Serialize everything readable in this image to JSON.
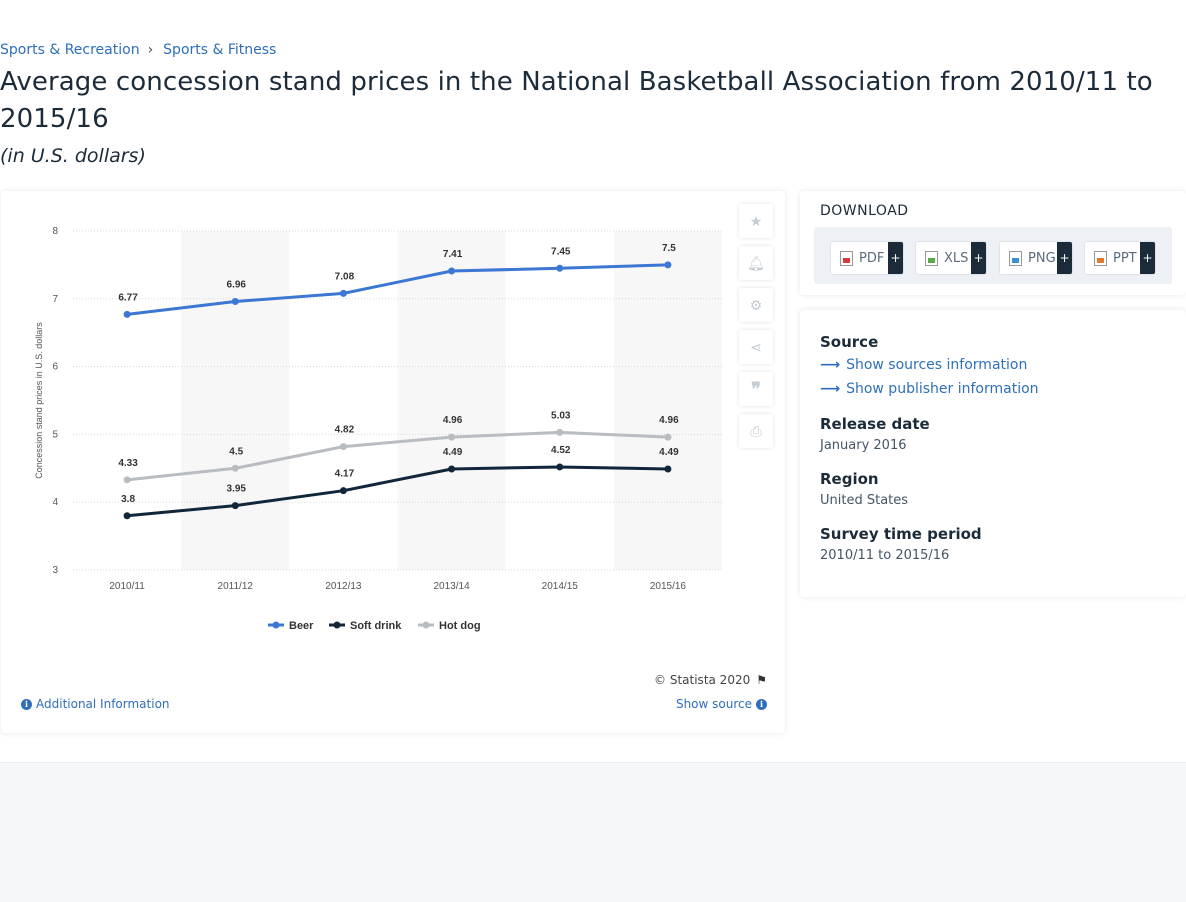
{
  "breadcrumb": {
    "items": [
      "Sports & Recreation",
      "Sports & Fitness"
    ],
    "separator": "›"
  },
  "page": {
    "title": "Average concession stand prices in the National Basketball Association from 2010/11 to 2015/16",
    "subtitle": "(in U.S. dollars)"
  },
  "chart_data": {
    "type": "line",
    "title": "",
    "xlabel": "",
    "ylabel": "Concession stand prices in U.S. dollars",
    "x": [
      "2010/11",
      "2011/12",
      "2012/13",
      "2013/14",
      "2014/15",
      "2015/16"
    ],
    "yticks": [
      3,
      4,
      5,
      6,
      7,
      8
    ],
    "ylim": [
      3,
      8
    ],
    "grid": true,
    "legend_position": "bottom",
    "series": [
      {
        "name": "Beer",
        "values": [
          6.77,
          6.96,
          7.08,
          7.41,
          7.45,
          7.5
        ],
        "labels": [
          "6.77",
          "6.96",
          "7.08",
          "7.41",
          "7.45",
          "7.5"
        ],
        "color": "#3b77d3"
      },
      {
        "name": "Soft drink",
        "values": [
          3.8,
          3.95,
          4.17,
          4.49,
          4.52,
          4.49
        ],
        "labels": [
          "3.8",
          "3.95",
          "4.17",
          "4.49",
          "4.52",
          "4.49"
        ],
        "color": "#12263a"
      },
      {
        "name": "Hot dog",
        "values": [
          4.33,
          4.5,
          4.82,
          4.96,
          5.03,
          4.96
        ],
        "labels": [
          "4.33",
          "4.5",
          "4.82",
          "4.96",
          "5.03",
          "4.96"
        ],
        "color": "#b9bcc0"
      }
    ]
  },
  "tools": [
    "star-icon",
    "bell-icon",
    "gear-icon",
    "share-icon",
    "quote-icon",
    "print-icon"
  ],
  "chart_footer": {
    "copyright": "© Statista 2020",
    "additional_info": "Additional Information",
    "show_source": "Show source"
  },
  "download": {
    "title": "DOWNLOAD",
    "buttons": [
      {
        "label": "PDF",
        "icon": "pdf-file-icon",
        "plus": "+"
      },
      {
        "label": "XLS",
        "icon": "xls-file-icon",
        "plus": "+"
      },
      {
        "label": "PNG",
        "icon": "png-file-icon",
        "plus": "+"
      },
      {
        "label": "PPT",
        "icon": "ppt-file-icon",
        "plus": "+"
      }
    ]
  },
  "details": {
    "source_label": "Source",
    "show_sources": "Show sources information",
    "show_publisher": "Show publisher information",
    "release_date_label": "Release date",
    "release_date": "January 2016",
    "region_label": "Region",
    "region": "United States",
    "survey_label": "Survey time period",
    "survey": "2010/11 to 2015/16"
  }
}
